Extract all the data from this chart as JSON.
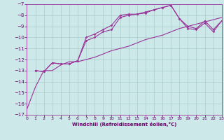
{
  "xlabel": "Windchill (Refroidissement éolien,°C)",
  "bg_color": "#cce8e8",
  "grid_color": "#aacccc",
  "line_color": "#993399",
  "xlim": [
    0,
    23
  ],
  "ylim": [
    -17,
    -7
  ],
  "xticks": [
    0,
    1,
    2,
    3,
    4,
    5,
    6,
    7,
    8,
    9,
    10,
    11,
    12,
    13,
    14,
    15,
    16,
    17,
    18,
    19,
    20,
    21,
    22,
    23
  ],
  "yticks": [
    -17,
    -16,
    -15,
    -14,
    -13,
    -12,
    -11,
    -10,
    -9,
    -8,
    -7
  ],
  "curve1_x": [
    0,
    1,
    2,
    3,
    4,
    5,
    6,
    7,
    8,
    9,
    10,
    11,
    12,
    13,
    14,
    15,
    16,
    17,
    18,
    19,
    20,
    21,
    22,
    23
  ],
  "curve1_y": [
    -16.5,
    -14.5,
    -13.0,
    -13.0,
    -12.5,
    -12.2,
    -12.2,
    -12.0,
    -11.8,
    -11.5,
    -11.2,
    -11.0,
    -10.8,
    -10.5,
    -10.2,
    -10.0,
    -9.8,
    -9.5,
    -9.2,
    -9.0,
    -8.8,
    -8.6,
    -8.4,
    -8.2
  ],
  "curve2_x": [
    1,
    2,
    3,
    4,
    5,
    6,
    7,
    8,
    9,
    10,
    11,
    12,
    13,
    14,
    15,
    16,
    17,
    18,
    19,
    20,
    21,
    22,
    23
  ],
  "curve2_y": [
    -13.0,
    -13.1,
    -12.3,
    -12.4,
    -12.4,
    -12.1,
    -10.0,
    -9.7,
    -9.3,
    -8.9,
    -8.0,
    -7.9,
    -7.9,
    -7.7,
    -7.5,
    -7.3,
    -7.1,
    -8.3,
    -9.0,
    -9.2,
    -8.5,
    -9.3,
    -8.5
  ],
  "curve3_x": [
    1,
    2,
    3,
    4,
    5,
    6,
    7,
    8,
    9,
    10,
    11,
    12,
    13,
    14,
    15,
    16,
    17,
    18,
    19,
    20,
    21,
    22,
    23
  ],
  "curve3_y": [
    -13.0,
    -13.1,
    -12.3,
    -12.4,
    -12.4,
    -12.1,
    -10.3,
    -10.0,
    -9.5,
    -9.3,
    -8.2,
    -8.0,
    -7.9,
    -7.8,
    -7.5,
    -7.3,
    -7.1,
    -8.3,
    -9.2,
    -9.3,
    -8.7,
    -9.5,
    -8.5
  ]
}
